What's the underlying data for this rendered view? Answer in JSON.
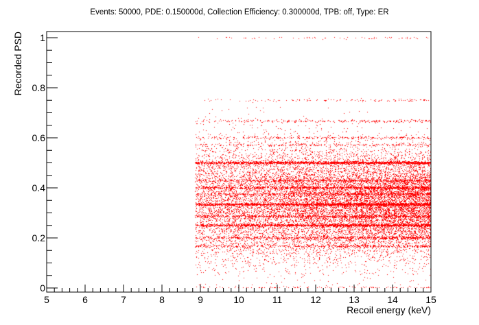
{
  "chart_data": {
    "type": "scatter",
    "title": "Events: 50000, PDE: 0.150000d, Collection Efficiency: 0.300000d, TPB: off, Type: ER",
    "xlabel": "Recoil energy (keV)",
    "ylabel": "Recorded PSD",
    "xlim": [
      5,
      15
    ],
    "ylim": [
      0,
      1
    ],
    "x_ticks": [
      "5",
      "6",
      "7",
      "8",
      "9",
      "10",
      "11",
      "12",
      "13",
      "14",
      "15"
    ],
    "y_ticks": [
      "0",
      "0.2",
      "0.4",
      "0.6",
      "0.8",
      "1"
    ],
    "grid": false,
    "legend": "none",
    "marker_color": "#ff0000",
    "events": 50000,
    "density_note": "points concentrate between 0.2 and 0.5, density increasing with energy",
    "bands": [
      {
        "y": 0.0,
        "weight": 0.008
      },
      {
        "y": 0.1667,
        "weight": 0.02
      },
      {
        "y": 0.2,
        "weight": 0.03
      },
      {
        "y": 0.25,
        "weight": 0.08
      },
      {
        "y": 0.2857,
        "weight": 0.04
      },
      {
        "y": 0.3333,
        "weight": 0.12
      },
      {
        "y": 0.375,
        "weight": 0.03
      },
      {
        "y": 0.4,
        "weight": 0.05
      },
      {
        "y": 0.4286,
        "weight": 0.03
      },
      {
        "y": 0.5,
        "weight": 0.1
      },
      {
        "y": 0.5714,
        "weight": 0.01
      },
      {
        "y": 0.6,
        "weight": 0.015
      },
      {
        "y": 0.6667,
        "weight": 0.015
      },
      {
        "y": 0.75,
        "weight": 0.006
      },
      {
        "y": 1.0,
        "weight": 0.004
      }
    ]
  }
}
